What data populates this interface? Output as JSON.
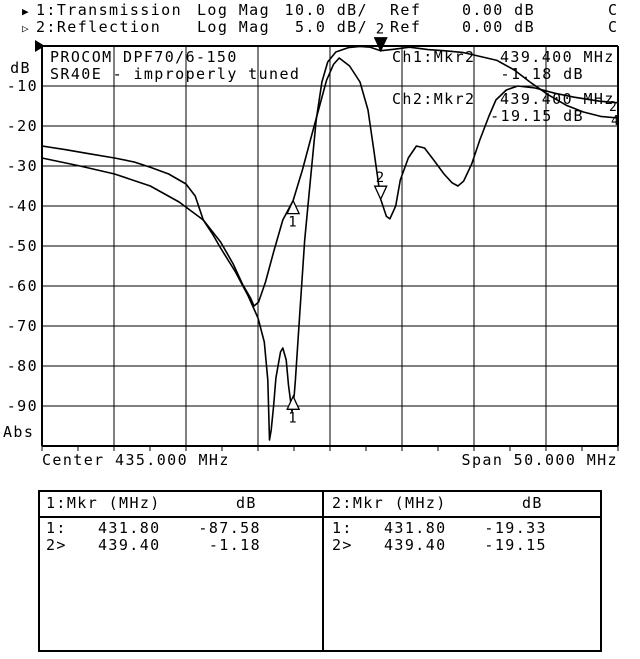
{
  "header": {
    "trace1": {
      "bullet": "▶",
      "label": "1:Transmission",
      "format": "Log Mag",
      "scale": "10.0 dB/",
      "ref_label": "Ref",
      "ref_value": "0.00 dB",
      "status": "C"
    },
    "trace2": {
      "bullet": "▷",
      "label": "2:Reflection",
      "format": "Log Mag",
      "scale": "5.0 dB/",
      "ref_label": "Ref",
      "ref_value": "0.00 dB",
      "status": "C"
    }
  },
  "plot": {
    "title_line1": "PROCOM DPF70/6-150",
    "title_line2": "SR40E - improperly tuned",
    "ch1_annotation": {
      "label": "Ch1:Mkr2",
      "freq": "439.400 MHz",
      "value": "-1.18 dB"
    },
    "ch2_annotation": {
      "label": "Ch2:Mkr2",
      "freq": "439.400 MHz",
      "value": "-19.15 dB"
    },
    "y_axis": {
      "unit": "dB",
      "labels": [
        "-10",
        "-20",
        "-30",
        "-40",
        "-50",
        "-60",
        "-70",
        "-80",
        "-90"
      ],
      "bottom_label": "Abs"
    },
    "x_axis": {
      "center": "Center 435.000 MHz",
      "span": "Span 50.000 MHz"
    },
    "trace_end_labels": [
      "2",
      "4"
    ]
  },
  "markers": [
    {
      "channel": 1,
      "number": "1",
      "freq_mhz": 431.8,
      "value_db": -87.58,
      "active": false,
      "filled": false
    },
    {
      "channel": 1,
      "number": "2",
      "freq_mhz": 439.4,
      "value_db": -1.18,
      "active": true,
      "filled": true
    },
    {
      "channel": 2,
      "number": "1",
      "freq_mhz": 431.8,
      "value_db": -19.33,
      "active": false,
      "filled": false
    },
    {
      "channel": 2,
      "number": "2",
      "freq_mhz": 439.4,
      "value_db": -19.15,
      "active": true,
      "filled": false
    }
  ],
  "marker_table": {
    "left": {
      "title": "1:Mkr (MHz)",
      "unit": "dB",
      "rows": [
        [
          "1:",
          "431.80",
          "-87.58"
        ],
        [
          "2>",
          "439.40",
          "-1.18"
        ]
      ]
    },
    "right": {
      "title": "2:Mkr (MHz)",
      "unit": "dB",
      "rows": [
        [
          "1:",
          "431.80",
          "-19.33"
        ],
        [
          "2>",
          "439.40",
          "-19.15"
        ]
      ]
    }
  },
  "chart_data": {
    "type": "line",
    "title": "PROCOM DPF70/6-150 SR40E - improperly tuned",
    "xlabel": "Frequency (MHz), Center 435.000 MHz, Span 50.000 MHz",
    "ylabel": "dB",
    "x_range_mhz": [
      410,
      460
    ],
    "grid": {
      "x_divisions": 8,
      "y_divisions": 10
    },
    "ch1_db_per_div": 10,
    "ch2_db_per_div": 5,
    "ch1_ref_db": 0,
    "ch2_ref_db": 0,
    "series": [
      {
        "name": "Transmission",
        "channel": 1,
        "points": [
          [
            410,
            -25
          ],
          [
            412,
            -25.9
          ],
          [
            414,
            -26.9
          ],
          [
            416.3,
            -28
          ],
          [
            418,
            -29
          ],
          [
            419.4,
            -30.3
          ],
          [
            421,
            -32
          ],
          [
            422.5,
            -34.5
          ],
          [
            423.3,
            -37.5
          ],
          [
            424,
            -43.5
          ],
          [
            424.8,
            -47
          ],
          [
            425.5,
            -50.5
          ],
          [
            426.8,
            -56.5
          ],
          [
            427.9,
            -62.5
          ],
          [
            428.75,
            -68
          ],
          [
            429.3,
            -74
          ],
          [
            429.6,
            -83.5
          ],
          [
            429.75,
            -98.5
          ],
          [
            429.9,
            -96
          ],
          [
            430.1,
            -90
          ],
          [
            430.3,
            -83
          ],
          [
            430.7,
            -76.5
          ],
          [
            430.9,
            -75.5
          ],
          [
            431.2,
            -78.5
          ],
          [
            431.4,
            -84.8
          ],
          [
            431.7,
            -91.5
          ],
          [
            431.9,
            -87
          ],
          [
            432,
            -83.5
          ],
          [
            432.4,
            -66
          ],
          [
            432.8,
            -48.5
          ],
          [
            433.3,
            -33.5
          ],
          [
            433.8,
            -18.5
          ],
          [
            434.3,
            -9
          ],
          [
            434.8,
            -4
          ],
          [
            435.5,
            -1.5
          ],
          [
            436.6,
            -0.4
          ],
          [
            437.6,
            -0.1
          ],
          [
            438.5,
            -0.3
          ],
          [
            439.4,
            -1.18
          ],
          [
            440.6,
            -0.8
          ],
          [
            441.9,
            -0.3
          ],
          [
            443.5,
            -0.9
          ],
          [
            445,
            -1.2
          ],
          [
            446.5,
            -1.6
          ],
          [
            448,
            -2.6
          ],
          [
            449.5,
            -3.6
          ],
          [
            451,
            -6
          ],
          [
            452.5,
            -9.3
          ],
          [
            454,
            -12.3
          ],
          [
            455.5,
            -14.8
          ],
          [
            457,
            -16.5
          ],
          [
            458.5,
            -17.6
          ],
          [
            460,
            -18
          ]
        ]
      },
      {
        "name": "Reflection",
        "channel": 2,
        "points": [
          [
            410,
            -14
          ],
          [
            413.3,
            -15
          ],
          [
            416.3,
            -16
          ],
          [
            419.4,
            -17.5
          ],
          [
            421.9,
            -19.5
          ],
          [
            424,
            -21.75
          ],
          [
            425.5,
            -24.5
          ],
          [
            426.6,
            -27.25
          ],
          [
            427.4,
            -29.75
          ],
          [
            428.1,
            -31.5
          ],
          [
            428.4,
            -32.5
          ],
          [
            428.8,
            -32
          ],
          [
            429.4,
            -29.5
          ],
          [
            430.1,
            -25.75
          ],
          [
            430.9,
            -21.75
          ],
          [
            431.8,
            -19.33
          ],
          [
            432.6,
            -15.5
          ],
          [
            433.3,
            -11.75
          ],
          [
            434,
            -8
          ],
          [
            434.7,
            -4.3
          ],
          [
            435.3,
            -2.3
          ],
          [
            435.8,
            -1.5
          ],
          [
            436.7,
            -2.5
          ],
          [
            437.6,
            -4.5
          ],
          [
            438.3,
            -8
          ],
          [
            438.8,
            -13
          ],
          [
            439.4,
            -19.15
          ],
          [
            439.9,
            -21.3
          ],
          [
            440.2,
            -21.6
          ],
          [
            440.7,
            -20
          ],
          [
            441.1,
            -16.75
          ],
          [
            441.8,
            -14
          ],
          [
            442.5,
            -12.5
          ],
          [
            443.2,
            -12.75
          ],
          [
            444,
            -14.25
          ],
          [
            444.9,
            -16
          ],
          [
            445.6,
            -17.1
          ],
          [
            446.1,
            -17.5
          ],
          [
            446.6,
            -16.9
          ],
          [
            447.3,
            -14.75
          ],
          [
            448,
            -11.75
          ],
          [
            448.8,
            -8.75
          ],
          [
            449.4,
            -6.75
          ],
          [
            450.3,
            -5.5
          ],
          [
            451.3,
            -5
          ],
          [
            452.8,
            -5.25
          ],
          [
            454.5,
            -5.9
          ],
          [
            456.2,
            -6.4
          ],
          [
            458.4,
            -6.9
          ],
          [
            460,
            -7.1
          ]
        ]
      }
    ]
  }
}
